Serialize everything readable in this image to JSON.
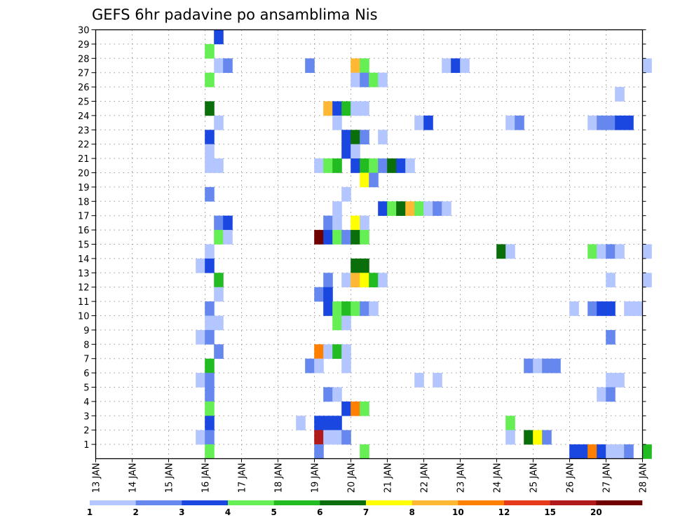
{
  "chart_data": {
    "type": "heatmap",
    "title": "GEFS 6hr padavine po ansamblima Nis",
    "xlabel": "",
    "ylabel": "",
    "x_ticks": [
      "13 JAN",
      "14 JAN",
      "15 JAN",
      "16 JAN",
      "17 JAN",
      "18 JAN",
      "19 JAN",
      "20 JAN",
      "21 JAN",
      "22 JAN",
      "23 JAN",
      "24 JAN",
      "25 JAN",
      "26 JAN",
      "27 JAN",
      "28 JAN"
    ],
    "x_range": [
      13,
      28
    ],
    "y_ticks": [
      1,
      2,
      3,
      4,
      5,
      6,
      7,
      8,
      9,
      10,
      11,
      12,
      13,
      14,
      15,
      16,
      17,
      18,
      19,
      20,
      21,
      22,
      23,
      24,
      25,
      26,
      27,
      28,
      29,
      30
    ],
    "y_range": [
      0,
      30
    ],
    "grid": true,
    "colorbar": {
      "labels": [
        "1",
        "2",
        "3",
        "4",
        "5",
        "6",
        "7",
        "8",
        "10",
        "12",
        "15",
        "20"
      ],
      "colors": [
        "#b3c6ff",
        "#6688ee",
        "#1a47e0",
        "#66ee55",
        "#22bb22",
        "#0a6e0a",
        "#ffff00",
        "#ffb833",
        "#ff8000",
        "#e63a1a",
        "#b01a1a",
        "#700000"
      ]
    },
    "cells": [
      {
        "y": 30,
        "x": [
          16.25
        ],
        "c": [
          3
        ]
      },
      {
        "y": 29,
        "x": [
          16.0
        ],
        "c": [
          4
        ]
      },
      {
        "y": 28,
        "x": [
          16.25,
          16.5,
          18.75,
          20.0,
          20.25,
          22.5,
          22.75,
          23.0,
          28.0
        ],
        "c": [
          1,
          2,
          2,
          8,
          4,
          1,
          3,
          1,
          1
        ]
      },
      {
        "y": 27,
        "x": [
          16.0,
          20.0,
          20.25,
          20.5,
          20.75
        ],
        "c": [
          4,
          1,
          2,
          4,
          1
        ]
      },
      {
        "y": 26,
        "x": [
          27.25
        ],
        "c": [
          1
        ]
      },
      {
        "y": 25,
        "x": [
          16.0,
          19.25,
          19.5,
          19.75,
          20.0,
          20.25
        ],
        "c": [
          6,
          8,
          3,
          5,
          1,
          1
        ]
      },
      {
        "y": 24,
        "x": [
          16.25,
          19.5,
          21.75,
          22.0,
          24.25,
          24.5,
          26.5,
          26.75,
          27.0,
          27.25,
          27.5
        ],
        "c": [
          1,
          1,
          1,
          3,
          1,
          2,
          1,
          2,
          2,
          3,
          3
        ]
      },
      {
        "y": 23,
        "x": [
          16.0,
          19.75,
          20.0,
          20.25,
          20.75
        ],
        "c": [
          3,
          3,
          6,
          2,
          1
        ]
      },
      {
        "y": 22,
        "x": [
          16.0,
          19.75,
          20.0
        ],
        "c": [
          1,
          3,
          1
        ]
      },
      {
        "y": 21,
        "x": [
          16.0,
          16.25,
          19.0,
          19.25,
          19.5,
          20.0,
          20.25,
          20.5,
          20.75,
          21.0,
          21.25,
          21.5
        ],
        "c": [
          1,
          1,
          1,
          4,
          5,
          3,
          5,
          4,
          2,
          6,
          3,
          1
        ]
      },
      {
        "y": 20,
        "x": [
          20.25,
          20.5
        ],
        "c": [
          7,
          2
        ]
      },
      {
        "y": 19,
        "x": [
          16.0,
          19.75
        ],
        "c": [
          2,
          1
        ]
      },
      {
        "y": 18,
        "x": [
          19.5,
          20.75,
          21.0,
          21.25,
          21.5,
          21.75,
          22.0,
          22.25,
          22.5
        ],
        "c": [
          1,
          3,
          4,
          6,
          8,
          4,
          1,
          2,
          1
        ]
      },
      {
        "y": 17,
        "x": [
          16.25,
          16.5,
          19.25,
          19.5,
          20.0,
          20.25
        ],
        "c": [
          2,
          3,
          2,
          1,
          7,
          1
        ]
      },
      {
        "y": 16,
        "x": [
          16.25,
          16.5,
          19.0,
          19.25,
          19.5,
          19.75,
          20.0,
          20.25
        ],
        "c": [
          4,
          1,
          12,
          3,
          4,
          2,
          6,
          4
        ]
      },
      {
        "y": 15,
        "x": [
          16.0,
          24.0,
          24.25,
          26.5,
          26.75,
          27.0,
          27.25,
          28.0
        ],
        "c": [
          1,
          6,
          1,
          4,
          1,
          2,
          1,
          1
        ]
      },
      {
        "y": 14,
        "x": [
          15.75,
          16.0,
          20.0,
          20.25
        ],
        "c": [
          1,
          3,
          6,
          6
        ]
      },
      {
        "y": 13,
        "x": [
          16.25,
          19.25,
          19.75,
          20.0,
          20.25,
          20.5,
          20.75,
          27.0,
          28.0
        ],
        "c": [
          5,
          2,
          1,
          8,
          7,
          5,
          1,
          1,
          1
        ]
      },
      {
        "y": 12,
        "x": [
          16.25,
          19.0,
          19.25
        ],
        "c": [
          1,
          2,
          3
        ]
      },
      {
        "y": 11,
        "x": [
          16.0,
          19.25,
          19.5,
          19.75,
          20.0,
          20.25,
          20.5,
          26.0,
          26.5,
          26.75,
          27.0,
          27.5,
          27.75
        ],
        "c": [
          2,
          3,
          4,
          5,
          4,
          2,
          1,
          1,
          2,
          3,
          3,
          1,
          1
        ]
      },
      {
        "y": 10,
        "x": [
          16.0,
          16.25,
          19.5,
          19.75
        ],
        "c": [
          1,
          1,
          4,
          1
        ]
      },
      {
        "y": 9,
        "x": [
          15.75,
          16.0,
          27.0
        ],
        "c": [
          1,
          2,
          2
        ]
      },
      {
        "y": 8,
        "x": [
          16.25,
          19.0,
          19.25,
          19.5,
          19.75
        ],
        "c": [
          2,
          9,
          1,
          5,
          1
        ]
      },
      {
        "y": 7,
        "x": [
          16.0,
          18.75,
          19.0,
          19.75,
          24.75,
          25.0,
          25.25,
          25.5
        ],
        "c": [
          5,
          2,
          1,
          1,
          2,
          1,
          2,
          2
        ]
      },
      {
        "y": 6,
        "x": [
          15.75,
          16.0,
          21.75,
          22.25,
          27.0,
          27.25
        ],
        "c": [
          1,
          2,
          1,
          1,
          1,
          1
        ]
      },
      {
        "y": 5,
        "x": [
          16.0,
          19.25,
          19.5,
          26.75,
          27.0
        ],
        "c": [
          2,
          2,
          1,
          1,
          2
        ]
      },
      {
        "y": 4,
        "x": [
          16.0,
          19.75,
          20.0,
          20.25
        ],
        "c": [
          4,
          3,
          9,
          4
        ]
      },
      {
        "y": 3,
        "x": [
          16.0,
          18.5,
          19.0,
          19.25,
          19.5,
          24.25
        ],
        "c": [
          3,
          1,
          3,
          3,
          3,
          4
        ]
      },
      {
        "y": 2,
        "x": [
          15.75,
          16.0,
          19.0,
          19.25,
          19.5,
          19.75,
          24.25,
          24.75,
          25.0,
          25.25
        ],
        "c": [
          1,
          2,
          11,
          1,
          1,
          2,
          1,
          6,
          7,
          2
        ]
      },
      {
        "y": 1,
        "x": [
          16.0,
          19.0,
          20.25,
          26.0,
          26.25,
          26.5,
          26.75,
          27.0,
          27.25,
          27.5,
          28.0
        ],
        "c": [
          4,
          2,
          4,
          3,
          3,
          9,
          3,
          1,
          1,
          2,
          5
        ]
      }
    ]
  }
}
